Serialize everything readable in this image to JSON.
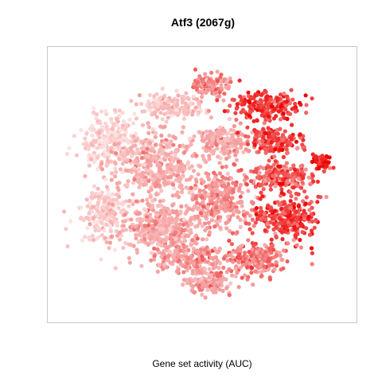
{
  "chart_data": {
    "type": "scatter",
    "title": "Atf3 (2067g)",
    "xlabel": "Gene set activity (AUC)",
    "ylabel": "",
    "grid": false,
    "legend": "none",
    "colors": {
      "low": "#fde2e2",
      "mid": "#f59a9a",
      "high": "#ee0000"
    },
    "description_of_data": "",
    "clusters": [
      {
        "name": "",
        "center": [
          -28,
          22
        ],
        "spread": [
          8,
          9
        ],
        "n": 260,
        "activity": 0.12
      },
      {
        "name": "",
        "center": [
          -30,
          -6
        ],
        "spread": [
          7,
          10
        ],
        "n": 200,
        "activity": 0.15
      },
      {
        "name": "",
        "center": [
          -14,
          12
        ],
        "spread": [
          12,
          12
        ],
        "n": 420,
        "activity": 0.35
      },
      {
        "name": "",
        "center": [
          -12,
          -12
        ],
        "spread": [
          12,
          9
        ],
        "n": 380,
        "activity": 0.38
      },
      {
        "name": "",
        "center": [
          -10,
          36
        ],
        "spread": [
          9,
          5
        ],
        "n": 160,
        "activity": 0.25
      },
      {
        "name": "",
        "center": [
          2,
          44
        ],
        "spread": [
          5,
          4
        ],
        "n": 120,
        "activity": 0.55
      },
      {
        "name": "",
        "center": [
          6,
          22
        ],
        "spread": [
          7,
          6
        ],
        "n": 160,
        "activity": 0.4
      },
      {
        "name": "",
        "center": [
          6,
          0
        ],
        "spread": [
          8,
          10
        ],
        "n": 280,
        "activity": 0.5
      },
      {
        "name": "",
        "center": [
          20,
          36
        ],
        "spread": [
          9,
          5
        ],
        "n": 220,
        "activity": 0.8
      },
      {
        "name": "",
        "center": [
          22,
          22
        ],
        "spread": [
          7,
          5
        ],
        "n": 160,
        "activity": 0.75
      },
      {
        "name": "",
        "center": [
          24,
          8
        ],
        "spread": [
          9,
          5
        ],
        "n": 200,
        "activity": 0.72
      },
      {
        "name": "",
        "center": [
          26,
          -8
        ],
        "spread": [
          9,
          8
        ],
        "n": 260,
        "activity": 0.78
      },
      {
        "name": "",
        "center": [
          16,
          -24
        ],
        "spread": [
          9,
          6
        ],
        "n": 200,
        "activity": 0.6
      },
      {
        "name": "",
        "center": [
          2,
          -34
        ],
        "spread": [
          6,
          4
        ],
        "n": 120,
        "activity": 0.45
      },
      {
        "name": "",
        "center": [
          -4,
          -24
        ],
        "spread": [
          10,
          6
        ],
        "n": 200,
        "activity": 0.45
      },
      {
        "name": "",
        "center": [
          36,
          14
        ],
        "spread": [
          3,
          3
        ],
        "n": 50,
        "activity": 0.95
      }
    ],
    "x_range": [
      -45,
      45
    ],
    "y_range": [
      -45,
      55
    ]
  }
}
